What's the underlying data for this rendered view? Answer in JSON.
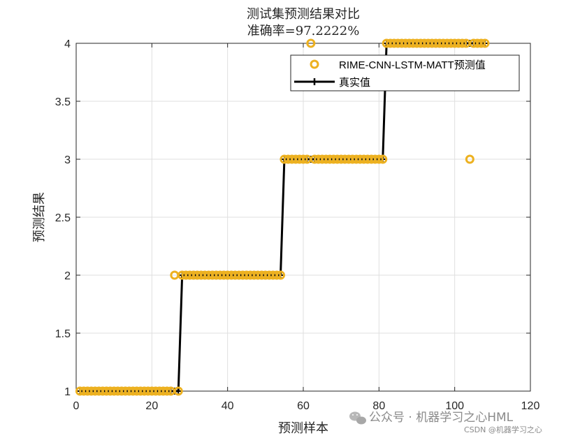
{
  "chart_data": {
    "type": "line",
    "title": "测试集预测结果对比",
    "subtitle": "准确率=97.2222%",
    "xlabel": "预测样本",
    "ylabel": "预测结果",
    "xlim": [
      0,
      120
    ],
    "ylim": [
      1,
      4
    ],
    "xticks": [
      0,
      20,
      40,
      60,
      80,
      100,
      120
    ],
    "yticks": [
      1,
      1.5,
      2,
      2.5,
      3,
      3.5,
      4
    ],
    "grid": true,
    "legend_position": "top-right",
    "series": [
      {
        "name": "RIME-CNN-LSTM-MATT预测值",
        "style": "marker-o",
        "color": "#EDB120",
        "segments": [
          {
            "x_from": 1,
            "x_to": 27,
            "y": 1
          },
          {
            "x_from": 28,
            "x_to": 54,
            "y": 2
          },
          {
            "x_from": 55,
            "x_to": 81,
            "y": 3
          },
          {
            "x_from": 82,
            "x_to": 108,
            "y": 4
          }
        ],
        "overrides": [
          {
            "x": 26,
            "y": 2
          },
          {
            "x": 62,
            "y": 4
          },
          {
            "x": 104,
            "y": 3
          }
        ]
      },
      {
        "name": "真实值",
        "style": "line-plus",
        "color": "#000000",
        "segments": [
          {
            "x_from": 1,
            "x_to": 27,
            "y": 1
          },
          {
            "x_from": 28,
            "x_to": 54,
            "y": 2
          },
          {
            "x_from": 55,
            "x_to": 81,
            "y": 3
          },
          {
            "x_from": 82,
            "x_to": 108,
            "y": 4
          }
        ]
      }
    ]
  },
  "watermark": {
    "main": "公众号 · 机器学习之心HML",
    "sub": "CSDN @机器学习之心"
  }
}
